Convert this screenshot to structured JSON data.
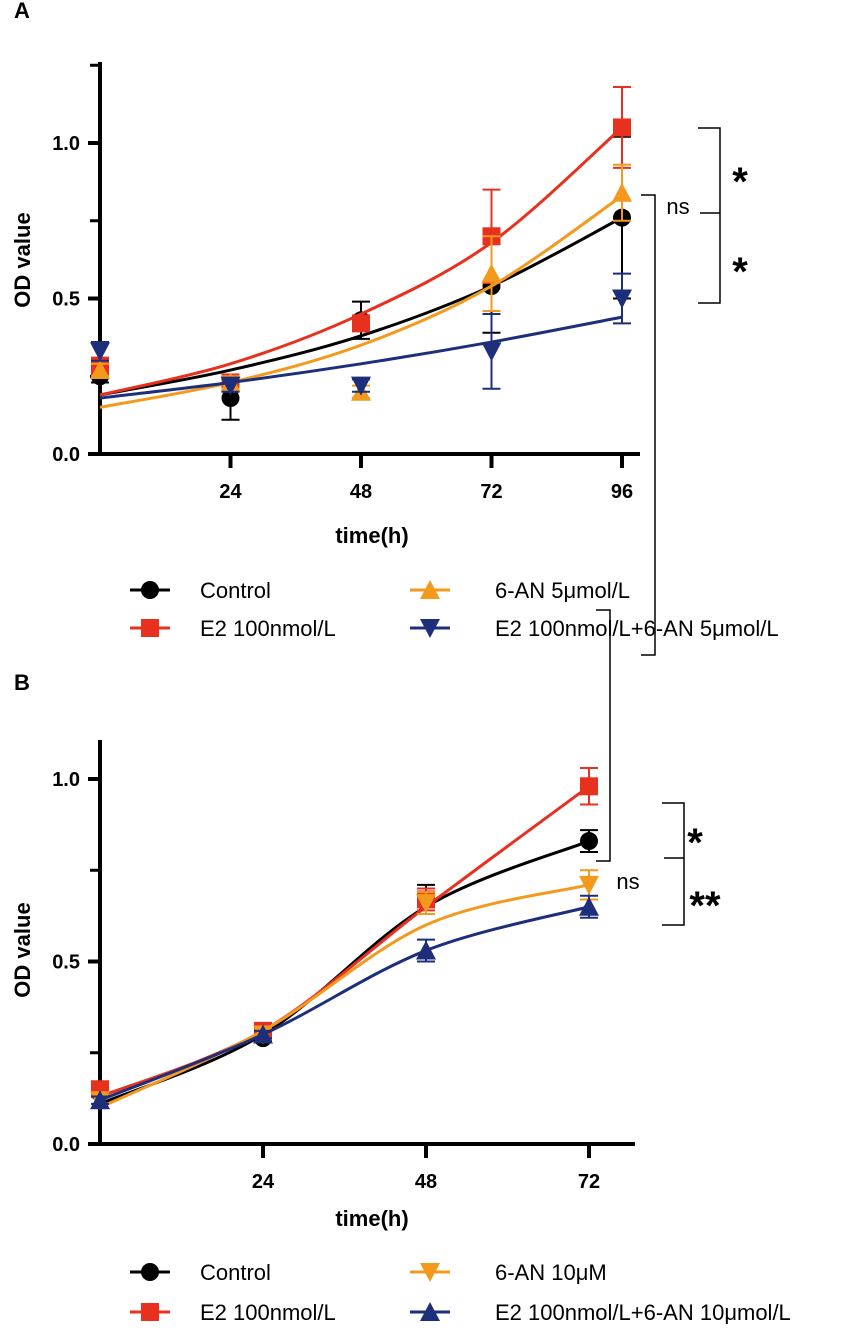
{
  "chart_data": [
    {
      "panel": "A",
      "type": "scatter",
      "xlabel": "time(h)",
      "ylabel": "OD value",
      "xlim": [
        0,
        100
      ],
      "ylim": [
        0,
        1.25
      ],
      "xticks": [
        "24",
        "48",
        "72",
        "96"
      ],
      "xtick_values": [
        24,
        48,
        72,
        96
      ],
      "yticks": [
        "0.0",
        "0.5",
        "1.0"
      ],
      "ytick_values": [
        0,
        0.5,
        1.0
      ],
      "x": [
        0,
        24,
        48,
        72,
        96
      ],
      "series": [
        {
          "name": "Control",
          "color": "#000000",
          "marker": "circle",
          "values": [
            0.25,
            0.18,
            0.43,
            0.54,
            0.76
          ],
          "err": [
            0.02,
            0.07,
            0.06,
            0.15,
            0.26
          ],
          "fit": [
            0.19,
            0.27,
            0.38,
            0.54,
            0.76
          ]
        },
        {
          "name": "E2 100nmol/L",
          "color": "#e8301f",
          "marker": "square",
          "values": [
            0.28,
            0.23,
            0.42,
            0.7,
            1.05
          ],
          "err": [
            0.03,
            0.02,
            0.02,
            0.15,
            0.13
          ],
          "fit": [
            0.19,
            0.29,
            0.45,
            0.68,
            1.05
          ]
        },
        {
          "name": "6-AN 5μmol/L",
          "color": "#f39a1e",
          "marker": "triangle-up",
          "values": [
            0.27,
            0.23,
            0.2,
            0.58,
            0.84
          ],
          "err": [
            0.02,
            0.02,
            0.02,
            0.12,
            0.09
          ],
          "fit": [
            0.15,
            0.23,
            0.35,
            0.54,
            0.83
          ]
        },
        {
          "name": "E2 100nmol/L+6-AN 5μmol/L",
          "color": "#1d2f7a",
          "marker": "triangle-down",
          "values": [
            0.33,
            0.22,
            0.22,
            0.33,
            0.5
          ],
          "err": [
            0.03,
            0.02,
            0.02,
            0.12,
            0.08
          ],
          "fit": [
            0.18,
            0.23,
            0.29,
            0.36,
            0.44
          ]
        }
      ],
      "annotations": {
        "ns": "ns",
        "sig1": "*",
        "sig2": "*"
      }
    },
    {
      "panel": "B",
      "type": "scatter",
      "xlabel": "time(h)",
      "ylabel": "OD value",
      "xlim": [
        0,
        76
      ],
      "ylim": [
        0,
        1.2
      ],
      "xticks": [
        "24",
        "48",
        "72"
      ],
      "xtick_values": [
        24,
        48,
        72
      ],
      "yticks": [
        "0.0",
        "0.5",
        "1.0"
      ],
      "ytick_values": [
        0,
        0.5,
        1.0
      ],
      "x": [
        0,
        24,
        48,
        72
      ],
      "series": [
        {
          "name": "Control",
          "color": "#000000",
          "marker": "circle",
          "values": [
            0.14,
            0.29,
            0.67,
            0.83
          ],
          "err": [
            0.01,
            0.01,
            0.04,
            0.03
          ],
          "fit": [
            0.11,
            0.3,
            0.65,
            0.83
          ]
        },
        {
          "name": "E2 100nmol/L",
          "color": "#e8301f",
          "marker": "square",
          "values": [
            0.15,
            0.31,
            0.67,
            0.98
          ],
          "err": [
            0.01,
            0.01,
            0.03,
            0.05
          ],
          "fit": [
            0.13,
            0.31,
            0.65,
            0.98
          ]
        },
        {
          "name": "6-AN 10μM",
          "color": "#f39a1e",
          "marker": "triangle-down",
          "values": [
            0.12,
            0.3,
            0.66,
            0.71
          ],
          "err": [
            0.01,
            0.01,
            0.03,
            0.04
          ],
          "fit": [
            0.1,
            0.31,
            0.6,
            0.71
          ]
        },
        {
          "name": "E2 100nmol/L+6-AN 10μmol/L",
          "color": "#1d2f7a",
          "marker": "triangle-up",
          "values": [
            0.12,
            0.3,
            0.53,
            0.65
          ],
          "err": [
            0.01,
            0.01,
            0.03,
            0.03
          ],
          "fit": [
            0.12,
            0.3,
            0.53,
            0.65
          ]
        }
      ],
      "legend_labels": [
        "Control",
        "E2 100nmol/L",
        "6-AN 10μM",
        "E2 100nmol/L+6-AN 10μmol/L"
      ],
      "annotations": {
        "ns": "ns",
        "sig1": "*",
        "sig2": "**"
      }
    }
  ]
}
